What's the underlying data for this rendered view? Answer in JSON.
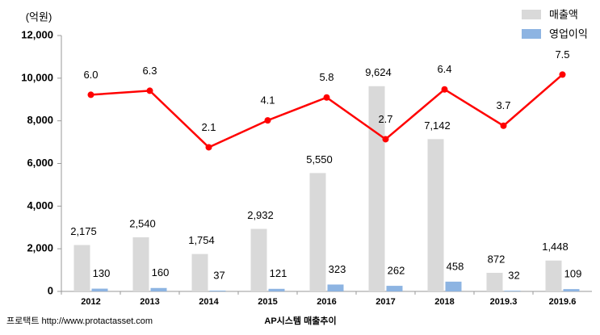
{
  "chart_data": {
    "type": "bar",
    "unit_label": "(억원)",
    "source": "프로택트 http://www.protactasset.com",
    "caption": "AP시스템 매출추이",
    "categories": [
      "2012",
      "2013",
      "2014",
      "2015",
      "2016",
      "2017",
      "2018",
      "2019.3",
      "2019.6"
    ],
    "series": [
      {
        "name": "매출액",
        "color": "#d9d9d9",
        "values": [
          2175,
          2540,
          1754,
          2932,
          5550,
          9624,
          7142,
          872,
          1448
        ],
        "value_labels": [
          "2,175",
          "2,540",
          "1,754",
          "2,932",
          "5,550",
          "9,624",
          "7,142",
          "872",
          "1,448"
        ]
      },
      {
        "name": "영업이익",
        "color": "#8db4e2",
        "values": [
          130,
          160,
          37,
          121,
          323,
          262,
          458,
          32,
          109
        ]
      },
      {
        "type": "line",
        "axis": "y2",
        "color": "#ff0000",
        "values": [
          6.0,
          6.3,
          2.1,
          4.1,
          5.8,
          2.7,
          6.4,
          3.7,
          7.5
        ],
        "value_labels": [
          "6.0",
          "6.3",
          "2.1",
          "4.1",
          "5.8",
          "2.7",
          "6.4",
          "3.7",
          "7.5"
        ]
      }
    ],
    "ylim": [
      0,
      12000
    ],
    "yticks": [
      {
        "value": 0,
        "label": "0"
      },
      {
        "value": 2000,
        "label": "2,000"
      },
      {
        "value": 4000,
        "label": "4,000"
      },
      {
        "value": 6000,
        "label": "6,000"
      },
      {
        "value": 8000,
        "label": "8,000"
      },
      {
        "value": 10000,
        "label": "10,000"
      },
      {
        "value": 12000,
        "label": "12,000"
      }
    ],
    "y2lim": [
      -8.6,
      10.4
    ],
    "grid": false
  }
}
